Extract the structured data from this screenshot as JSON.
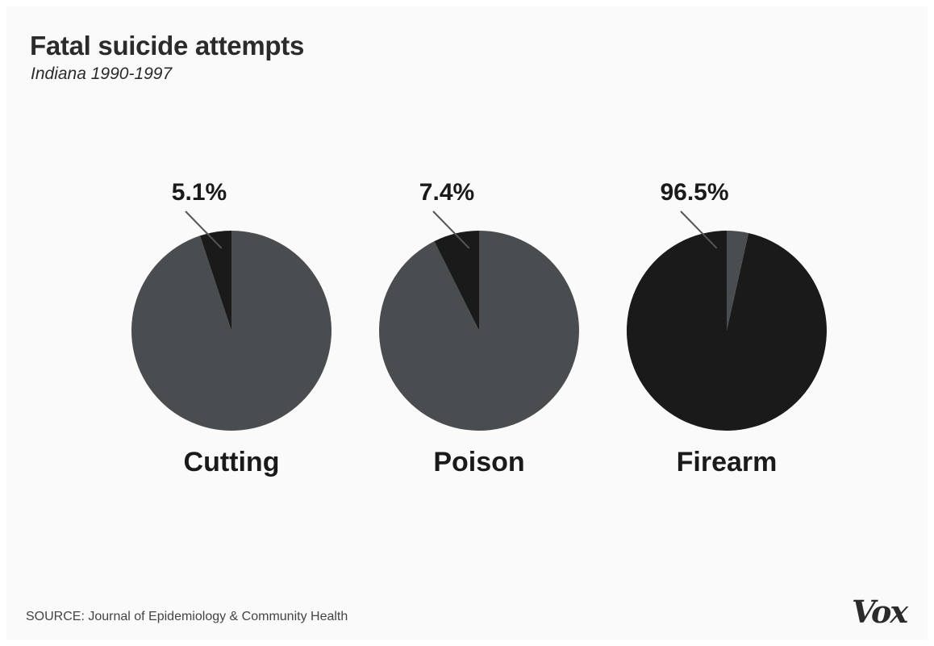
{
  "title": "Fatal suicide attempts",
  "subtitle": "Indiana 1990-1997",
  "source": "SOURCE: Journal of Epidemiology & Community Health",
  "logo_text": "Vox",
  "colors": {
    "highlight": "#1a1a1a",
    "remainder": "#4a4d50",
    "leader": "#555555"
  },
  "chart_data": {
    "type": "pie",
    "unit": "%",
    "categories": [
      "Cutting",
      "Poison",
      "Firearm"
    ],
    "values": [
      5.1,
      7.4,
      96.5
    ],
    "labels": [
      "5.1%",
      "7.4%",
      "96.5%"
    ]
  }
}
